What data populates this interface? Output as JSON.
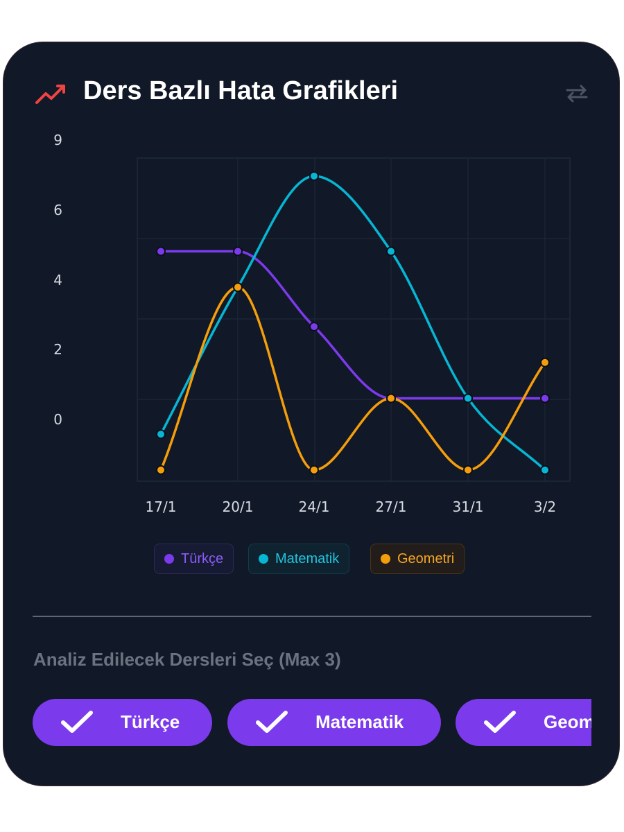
{
  "header": {
    "title": "Ders Bazlı Hata Grafikleri",
    "trend_icon": "trending-up-icon",
    "swap_icon": "swap-arrows-icon"
  },
  "colors": {
    "card_bg": "#111827",
    "accent": "#7c3aed",
    "turkce": "#7c3aed",
    "matematik": "#06b6d4",
    "geometri": "#f59e0b",
    "trend_icon": "#ef4444"
  },
  "chart_data": {
    "type": "line",
    "categories": [
      "17/1",
      "20/1",
      "24/1",
      "27/1",
      "31/1",
      "3/2"
    ],
    "y_tick_labels": [
      "9",
      "6",
      "4",
      "2",
      "0"
    ],
    "grid": true,
    "curve": "smooth",
    "legend_position": "bottom",
    "series": [
      {
        "name": "Türkçe",
        "color": "#7c3aed",
        "values": [
          4.4,
          4.4,
          2.3,
          0.3,
          0.3,
          0.3
        ]
      },
      {
        "name": "Matematik",
        "color": "#06b6d4",
        "values": [
          -0.7,
          3.4,
          6.5,
          4.4,
          0.3,
          -1.7
        ]
      },
      {
        "name": "Geometri",
        "color": "#f59e0b",
        "values": [
          -1.7,
          3.4,
          -1.7,
          0.3,
          -1.7,
          1.3
        ]
      }
    ]
  },
  "section": {
    "label": "Analiz Edilecek Dersleri Seç (Max 3)"
  },
  "chips": [
    {
      "label": "Türkçe",
      "selected": true,
      "icon": "checkmark-icon"
    },
    {
      "label": "Matematik",
      "selected": true,
      "icon": "checkmark-icon"
    },
    {
      "label": "Geometri",
      "selected": true,
      "icon": "checkmark-icon"
    }
  ]
}
